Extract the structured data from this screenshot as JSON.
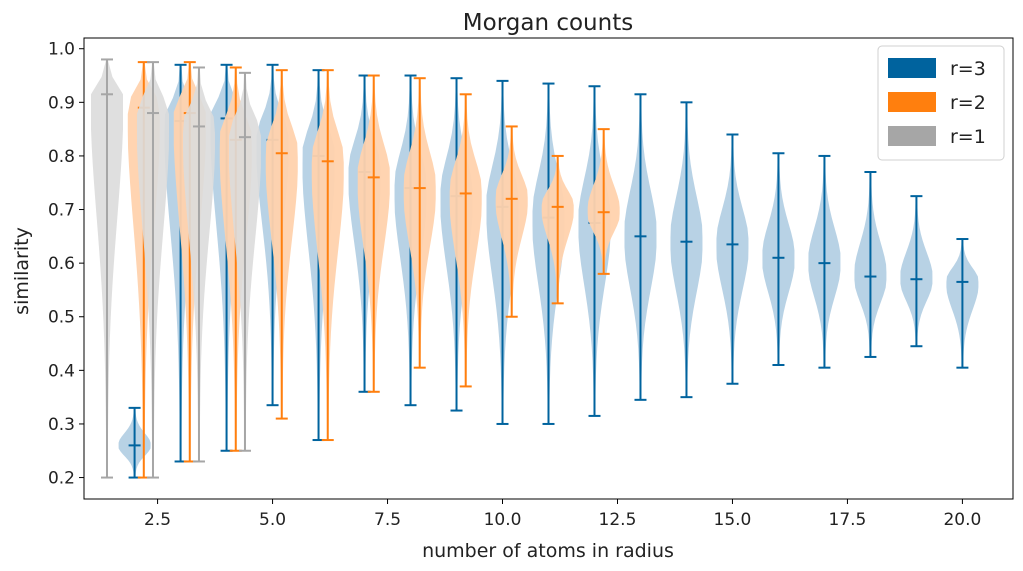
{
  "chart_data": {
    "type": "violin",
    "title": "Morgan counts",
    "xlabel": "number of atoms in radius",
    "ylabel": "similarity",
    "xlim": [
      0.9,
      21.1
    ],
    "ylim": [
      0.16,
      1.02
    ],
    "xticks": [
      "2.5",
      "5.0",
      "7.5",
      "10.0",
      "12.5",
      "15.0",
      "17.5",
      "20.0"
    ],
    "yticks": [
      "0.2",
      "0.3",
      "0.4",
      "0.5",
      "0.6",
      "0.7",
      "0.8",
      "0.9",
      "1.0"
    ],
    "legend_position": "top-right",
    "series": [
      {
        "name": "r=3",
        "color": "#00639e",
        "violins": [
          {
            "x": 2,
            "min": 0.2,
            "max": 0.33,
            "median": 0.26
          },
          {
            "x": 3,
            "min": 0.23,
            "max": 0.97,
            "median": 0.865
          },
          {
            "x": 4,
            "min": 0.25,
            "max": 0.97,
            "median": 0.87
          },
          {
            "x": 5,
            "min": 0.335,
            "max": 0.97,
            "median": 0.83
          },
          {
            "x": 6,
            "min": 0.27,
            "max": 0.96,
            "median": 0.8
          },
          {
            "x": 7,
            "min": 0.36,
            "max": 0.95,
            "median": 0.77
          },
          {
            "x": 8,
            "min": 0.335,
            "max": 0.95,
            "median": 0.74
          },
          {
            "x": 9,
            "min": 0.325,
            "max": 0.945,
            "median": 0.725
          },
          {
            "x": 10,
            "min": 0.3,
            "max": 0.94,
            "median": 0.705
          },
          {
            "x": 11,
            "min": 0.3,
            "max": 0.935,
            "median": 0.685
          },
          {
            "x": 12,
            "min": 0.315,
            "max": 0.93,
            "median": 0.675
          },
          {
            "x": 13,
            "min": 0.345,
            "max": 0.915,
            "median": 0.65
          },
          {
            "x": 14,
            "min": 0.35,
            "max": 0.9,
            "median": 0.64
          },
          {
            "x": 15,
            "min": 0.375,
            "max": 0.84,
            "median": 0.635
          },
          {
            "x": 16,
            "min": 0.41,
            "max": 0.805,
            "median": 0.61
          },
          {
            "x": 17,
            "min": 0.405,
            "max": 0.8,
            "median": 0.6
          },
          {
            "x": 18,
            "min": 0.425,
            "max": 0.77,
            "median": 0.575
          },
          {
            "x": 19,
            "min": 0.445,
            "max": 0.725,
            "median": 0.57
          },
          {
            "x": 20,
            "min": 0.405,
            "max": 0.645,
            "median": 0.565
          }
        ]
      },
      {
        "name": "r=2",
        "color": "#ff7f0e",
        "violins": [
          {
            "x": 2.2,
            "min": 0.2,
            "max": 0.975,
            "median": 0.89
          },
          {
            "x": 3.2,
            "min": 0.23,
            "max": 0.975,
            "median": 0.88
          },
          {
            "x": 4.2,
            "min": 0.25,
            "max": 0.965,
            "median": 0.83
          },
          {
            "x": 5.2,
            "min": 0.31,
            "max": 0.96,
            "median": 0.805
          },
          {
            "x": 6.2,
            "min": 0.27,
            "max": 0.96,
            "median": 0.79
          },
          {
            "x": 7.2,
            "min": 0.36,
            "max": 0.95,
            "median": 0.76
          },
          {
            "x": 8.2,
            "min": 0.405,
            "max": 0.945,
            "median": 0.74
          },
          {
            "x": 9.2,
            "min": 0.37,
            "max": 0.915,
            "median": 0.73
          },
          {
            "x": 10.2,
            "min": 0.5,
            "max": 0.855,
            "median": 0.72
          },
          {
            "x": 11.2,
            "min": 0.525,
            "max": 0.8,
            "median": 0.705
          },
          {
            "x": 12.2,
            "min": 0.58,
            "max": 0.85,
            "median": 0.695
          }
        ]
      },
      {
        "name": "r=1",
        "color": "#a6a6a6",
        "violins": [
          {
            "x": 1.4,
            "min": 0.2,
            "max": 0.98,
            "median": 0.915
          },
          {
            "x": 2.4,
            "min": 0.2,
            "max": 0.975,
            "median": 0.88
          },
          {
            "x": 3.4,
            "min": 0.23,
            "max": 0.965,
            "median": 0.855
          },
          {
            "x": 4.4,
            "min": 0.25,
            "max": 0.955,
            "median": 0.835
          }
        ]
      }
    ]
  }
}
